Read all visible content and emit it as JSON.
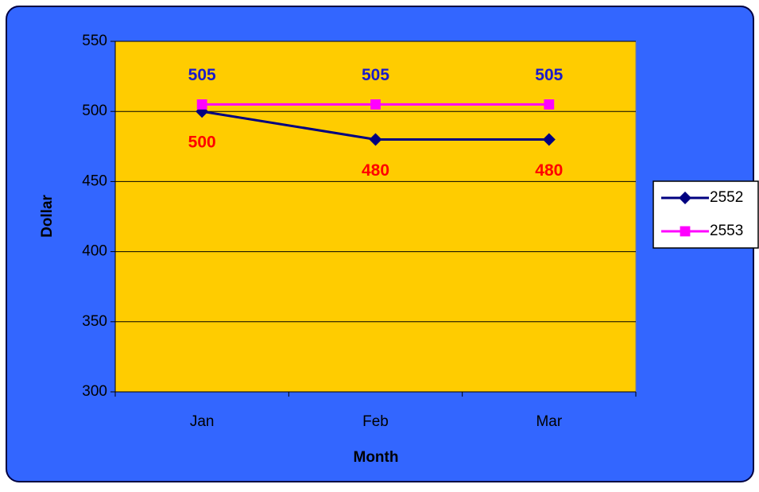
{
  "chart_data": {
    "type": "line",
    "x_label": "Month",
    "y_label": "Dollar",
    "categories": [
      "Jan",
      "Feb",
      "Mar"
    ],
    "series": [
      {
        "name": "2552",
        "color": "#000080",
        "marker": "diamond",
        "label_color": "#ff0000",
        "label_position": "below",
        "values": [
          500,
          480,
          480
        ]
      },
      {
        "name": "2553",
        "color": "#ff00ff",
        "marker": "square",
        "label_color": "#1a1acc",
        "label_position": "above",
        "values": [
          505,
          505,
          505
        ]
      }
    ],
    "ylim": [
      300,
      550
    ],
    "yticks": [
      300,
      350,
      400,
      450,
      500,
      550
    ],
    "grid": true,
    "legend": "right",
    "plot_background": "#ffcc00",
    "background": "#3366ff"
  }
}
